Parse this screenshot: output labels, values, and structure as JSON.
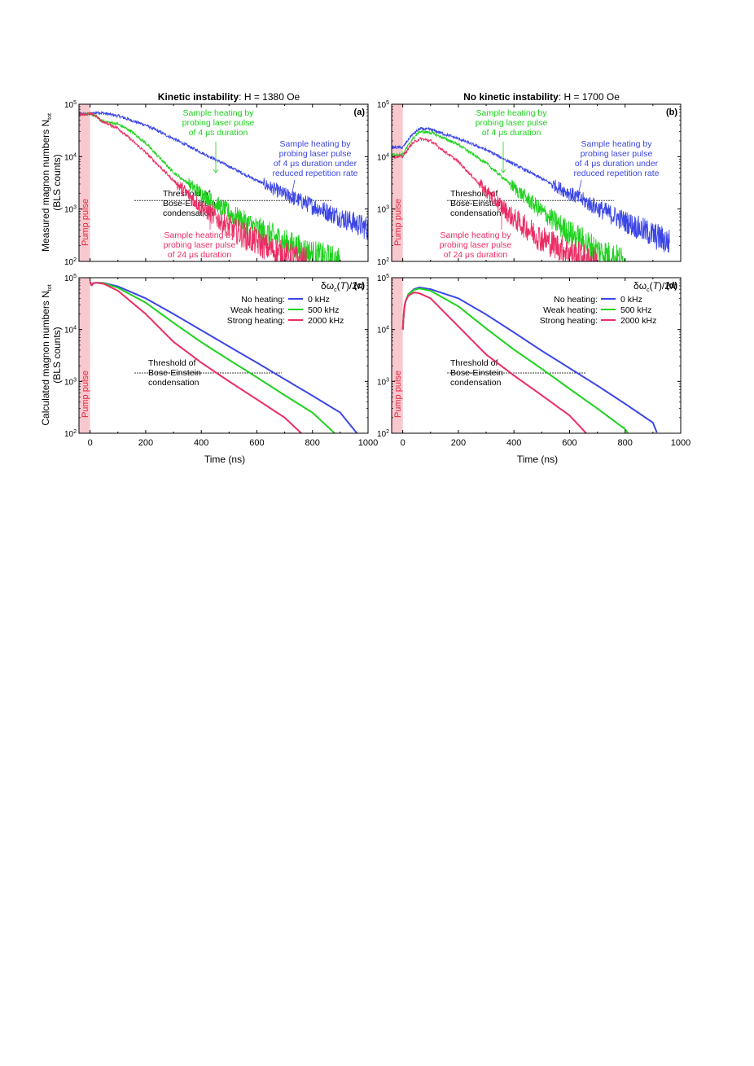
{
  "figure": {
    "title_left_bold": "Kinetic instability",
    "title_left_rest": ": H = 1380 Oe",
    "title_right_bold": "No kinetic instability",
    "title_right_rest": ": H = 1700 Oe",
    "ylabel_top_line1": "Measured magnon numbers N",
    "ylabel_top_sub": "tot",
    "ylabel_bottom_line1": "Calculated magnon numbers N",
    "ylabel_bottom_sub": "tot",
    "ylabel_line2": "(BLS counts)",
    "xlabel": "Time (ns)",
    "pump_label": "Pump pulse",
    "legend_title": "δω_c(T)/2π",
    "threshold_text": [
      "Threshold of",
      "Bose-Einstein",
      "condensation"
    ]
  },
  "colors": {
    "blue": "#3c46e6",
    "green": "#1ed21e",
    "red": "#eb2d64",
    "pump": "#f8c8cf",
    "pump_text": "#e8283c"
  },
  "chart_data": [
    {
      "panel": "(a)",
      "type": "line",
      "yscale": "log",
      "xlim": [
        -40,
        1000
      ],
      "ylim": [
        100,
        100000
      ],
      "xticks": [
        0,
        200,
        400,
        600,
        800,
        1000
      ],
      "yticks": [
        100,
        1000,
        10000,
        100000
      ],
      "pump_interval": [
        -40,
        0
      ],
      "threshold": {
        "y": 1450,
        "x": [
          160,
          870
        ]
      },
      "series": [
        {
          "color": "blue",
          "noisy": true,
          "points": [
            [
              -40,
              65000
            ],
            [
              0,
              65000
            ],
            [
              30,
              70000
            ],
            [
              100,
              60000
            ],
            [
              200,
              40000
            ],
            [
              300,
              22000
            ],
            [
              400,
              12000
            ],
            [
              500,
              6500
            ],
            [
              600,
              3500
            ],
            [
              700,
              1900
            ],
            [
              800,
              1150
            ],
            [
              900,
              700
            ],
            [
              1000,
              420
            ]
          ]
        },
        {
          "color": "green",
          "noisy": true,
          "points": [
            [
              -40,
              65000
            ],
            [
              0,
              65000
            ],
            [
              20,
              60000
            ],
            [
              40,
              48000
            ],
            [
              100,
              42000
            ],
            [
              150,
              30000
            ],
            [
              200,
              18000
            ],
            [
              250,
              9500
            ],
            [
              300,
              5000
            ],
            [
              400,
              2000
            ],
            [
              500,
              850
            ],
            [
              600,
              420
            ],
            [
              700,
              230
            ],
            [
              800,
              140
            ],
            [
              850,
              120
            ],
            [
              900,
              100
            ]
          ]
        },
        {
          "color": "red",
          "noisy": true,
          "points": [
            [
              -40,
              65000
            ],
            [
              0,
              65000
            ],
            [
              20,
              60000
            ],
            [
              40,
              48000
            ],
            [
              100,
              35000
            ],
            [
              200,
              12000
            ],
            [
              300,
              3500
            ],
            [
              400,
              1100
            ],
            [
              500,
              450
            ],
            [
              600,
              230
            ],
            [
              700,
              130
            ],
            [
              780,
              100
            ]
          ]
        }
      ],
      "annotations": [
        {
          "color": "green",
          "lines": [
            "Sample heating by",
            "probing laser pulse",
            "of 4 μs duration"
          ]
        },
        {
          "color": "blue",
          "lines": [
            "Sample heating by",
            "probing laser pulse",
            "of 4 μs duration under",
            "reduced repetition rate"
          ]
        },
        {
          "color": "red",
          "lines": [
            "Sample heating by",
            "probing laser pulse",
            "of 24 μs duration"
          ]
        }
      ]
    },
    {
      "panel": "(b)",
      "type": "line",
      "yscale": "log",
      "xlim": [
        -40,
        1000
      ],
      "ylim": [
        100,
        100000
      ],
      "xticks": [
        0,
        200,
        400,
        600,
        800,
        1000
      ],
      "yticks": [
        100,
        1000,
        10000,
        100000
      ],
      "pump_interval": [
        -40,
        0
      ],
      "threshold": {
        "y": 1450,
        "x": [
          160,
          760
        ]
      },
      "series": [
        {
          "color": "blue",
          "noisy": true,
          "points": [
            [
              -40,
              15000
            ],
            [
              0,
              15000
            ],
            [
              30,
              25000
            ],
            [
              60,
              34000
            ],
            [
              100,
              33000
            ],
            [
              200,
              22000
            ],
            [
              300,
              13500
            ],
            [
              400,
              7200
            ],
            [
              500,
              3800
            ],
            [
              600,
              2000
            ],
            [
              700,
              1050
            ],
            [
              800,
              580
            ],
            [
              900,
              320
            ],
            [
              960,
              230
            ]
          ]
        },
        {
          "color": "green",
          "noisy": true,
          "points": [
            [
              -40,
              11000
            ],
            [
              0,
              11000
            ],
            [
              30,
              20000
            ],
            [
              60,
              30000
            ],
            [
              100,
              29000
            ],
            [
              200,
              17000
            ],
            [
              300,
              7500
            ],
            [
              400,
              2600
            ],
            [
              500,
              900
            ],
            [
              600,
              350
            ],
            [
              700,
              165
            ],
            [
              800,
              100
            ]
          ]
        },
        {
          "color": "red",
          "noisy": true,
          "points": [
            [
              -40,
              10000
            ],
            [
              0,
              10000
            ],
            [
              30,
              17000
            ],
            [
              60,
              22000
            ],
            [
              100,
              20000
            ],
            [
              200,
              8000
            ],
            [
              300,
              2200
            ],
            [
              400,
              650
            ],
            [
              500,
              270
            ],
            [
              600,
              150
            ],
            [
              700,
              100
            ]
          ]
        }
      ],
      "annotations": [
        {
          "color": "green",
          "lines": [
            "Sample heating by",
            "probing laser pulse",
            "of 4 μs duration"
          ]
        },
        {
          "color": "blue",
          "lines": [
            "Sample heating by",
            "probing laser pulse",
            "of 4 μs duration under",
            "reduced repetition rate"
          ]
        },
        {
          "color": "red",
          "lines": [
            "Sample heating by",
            "probing laser pulse",
            "of 24 μs duration"
          ]
        }
      ]
    },
    {
      "panel": "(c)",
      "type": "line",
      "yscale": "log",
      "xlim": [
        -40,
        1000
      ],
      "ylim": [
        100,
        100000
      ],
      "xticks": [
        0,
        200,
        400,
        600,
        800,
        1000
      ],
      "yticks": [
        100,
        1000,
        10000,
        100000
      ],
      "pump_interval": [
        -40,
        0
      ],
      "threshold": {
        "y": 1450,
        "x": [
          160,
          690
        ]
      },
      "legend": [
        {
          "label": "No heating:",
          "value": "0 kHz",
          "color": "blue"
        },
        {
          "label": "Weak heating:",
          "value": "500 kHz",
          "color": "green"
        },
        {
          "label": "Strong heating:",
          "value": "2000 kHz",
          "color": "red"
        }
      ],
      "series": [
        {
          "name": "No heating",
          "color": "blue",
          "points": [
            [
              0,
              85000
            ],
            [
              5,
              70000
            ],
            [
              10,
              78000
            ],
            [
              25,
              80000
            ],
            [
              50,
              79000
            ],
            [
              100,
              68000
            ],
            [
              200,
              40000
            ],
            [
              300,
              20000
            ],
            [
              400,
              9700
            ],
            [
              500,
              4700
            ],
            [
              600,
              2300
            ],
            [
              700,
              1100
            ],
            [
              800,
              530
            ],
            [
              900,
              250
            ],
            [
              960,
              100
            ]
          ]
        },
        {
          "name": "Weak heating",
          "color": "green",
          "points": [
            [
              0,
              85000
            ],
            [
              5,
              70000
            ],
            [
              10,
              78000
            ],
            [
              25,
              80000
            ],
            [
              50,
              78000
            ],
            [
              100,
              64000
            ],
            [
              200,
              33000
            ],
            [
              300,
              13500
            ],
            [
              400,
              5700
            ],
            [
              500,
              2600
            ],
            [
              600,
              1200
            ],
            [
              700,
              540
            ],
            [
              800,
              250
            ],
            [
              880,
              100
            ]
          ]
        },
        {
          "name": "Strong heating",
          "color": "red",
          "points": [
            [
              0,
              85000
            ],
            [
              5,
              70000
            ],
            [
              10,
              78000
            ],
            [
              25,
              80000
            ],
            [
              50,
              76000
            ],
            [
              100,
              56000
            ],
            [
              200,
              20000
            ],
            [
              300,
              5800
            ],
            [
              400,
              2300
            ],
            [
              500,
              1000
            ],
            [
              600,
              450
            ],
            [
              700,
              200
            ],
            [
              760,
              100
            ]
          ]
        }
      ]
    },
    {
      "panel": "(d)",
      "type": "line",
      "yscale": "log",
      "xlim": [
        -40,
        1000
      ],
      "ylim": [
        100,
        100000
      ],
      "xticks": [
        0,
        200,
        400,
        600,
        800,
        1000
      ],
      "yticks": [
        100,
        1000,
        10000,
        100000
      ],
      "pump_interval": [
        -40,
        0
      ],
      "threshold": {
        "y": 1450,
        "x": [
          160,
          660
        ]
      },
      "legend": [
        {
          "label": "No heating:",
          "value": "0 kHz",
          "color": "blue"
        },
        {
          "label": "Weak heating:",
          "value": "500 kHz",
          "color": "green"
        },
        {
          "label": "Strong heating:",
          "value": "2000 kHz",
          "color": "red"
        }
      ],
      "series": [
        {
          "name": "No heating",
          "color": "blue",
          "points": [
            [
              0,
              10000
            ],
            [
              5,
              25000
            ],
            [
              10,
              35000
            ],
            [
              20,
              48000
            ],
            [
              40,
              60000
            ],
            [
              60,
              65000
            ],
            [
              100,
              60000
            ],
            [
              200,
              40000
            ],
            [
              300,
              19500
            ],
            [
              400,
              8800
            ],
            [
              500,
              3900
            ],
            [
              600,
              1800
            ],
            [
              700,
              830
            ],
            [
              800,
              370
            ],
            [
              900,
              160
            ],
            [
              915,
              100
            ]
          ]
        },
        {
          "name": "Weak heating",
          "color": "green",
          "points": [
            [
              0,
              10000
            ],
            [
              5,
              25000
            ],
            [
              10,
              35000
            ],
            [
              20,
              48000
            ],
            [
              40,
              58000
            ],
            [
              60,
              62000
            ],
            [
              100,
              56000
            ],
            [
              200,
              28000
            ],
            [
              300,
              10500
            ],
            [
              400,
              4100
            ],
            [
              500,
              1750
            ],
            [
              600,
              720
            ],
            [
              700,
              300
            ],
            [
              800,
              120
            ],
            [
              810,
              100
            ]
          ]
        },
        {
          "name": "Strong heating",
          "color": "red",
          "points": [
            [
              0,
              10000
            ],
            [
              5,
              25000
            ],
            [
              10,
              35000
            ],
            [
              20,
              45000
            ],
            [
              40,
              52000
            ],
            [
              60,
              50000
            ],
            [
              100,
              40000
            ],
            [
              200,
              11500
            ],
            [
              300,
              3300
            ],
            [
              400,
              1300
            ],
            [
              500,
              540
            ],
            [
              600,
              220
            ],
            [
              660,
              100
            ]
          ]
        }
      ]
    }
  ]
}
